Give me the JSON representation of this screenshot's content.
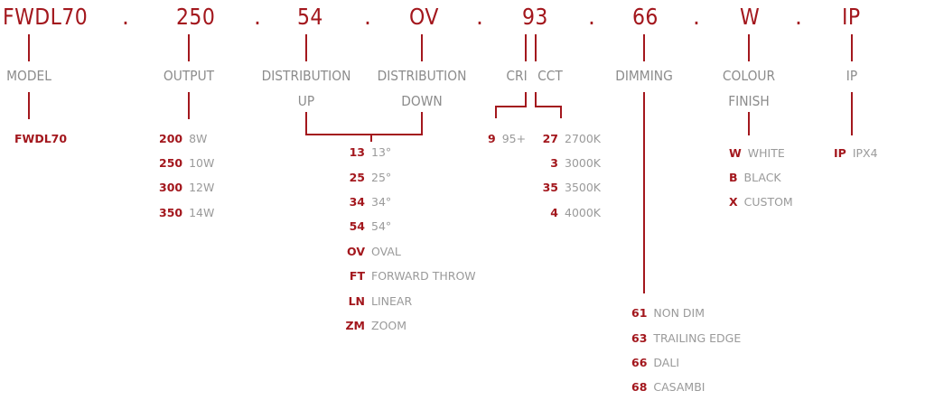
{
  "codes": {
    "model": "FWDL70",
    "output": "250",
    "dist_up": "54",
    "dist_down": "OV",
    "cri_cct": "93",
    "dimming": "66",
    "colour": "W",
    "ip": "IP",
    "separator": "."
  },
  "labels": {
    "model": "MODEL",
    "output": "OUTPUT",
    "distribution_up_1": "DISTRIBUTION",
    "distribution_up_2": "UP",
    "distribution_down_1": "DISTRIBUTION",
    "distribution_down_2": "DOWN",
    "cri": "CRI",
    "cct": "CCT",
    "dimming": "DIMMING",
    "colour_1": "COLOUR",
    "colour_2": "FINISH",
    "ip": "IP"
  },
  "model_options": [
    {
      "code": "FWDL70"
    }
  ],
  "output_options": [
    {
      "code": "200",
      "desc": "8W"
    },
    {
      "code": "250",
      "desc": "10W"
    },
    {
      "code": "300",
      "desc": "12W"
    },
    {
      "code": "350",
      "desc": "14W"
    }
  ],
  "distribution_options": [
    {
      "code": "13",
      "desc": "13°"
    },
    {
      "code": "25",
      "desc": "25°"
    },
    {
      "code": "34",
      "desc": "34°"
    },
    {
      "code": "54",
      "desc": "54°"
    },
    {
      "code": "OV",
      "desc": "OVAL"
    },
    {
      "code": "FT",
      "desc": "FORWARD THROW"
    },
    {
      "code": "LN",
      "desc": "LINEAR"
    },
    {
      "code": "ZM",
      "desc": "ZOOM"
    }
  ],
  "cri_options": [
    {
      "code": "9",
      "desc": "95+"
    }
  ],
  "cct_options": [
    {
      "code": "27",
      "desc": "2700K"
    },
    {
      "code": "3",
      "desc": "3000K"
    },
    {
      "code": "35",
      "desc": "3500K"
    },
    {
      "code": "4",
      "desc": "4000K"
    }
  ],
  "dimming_options": [
    {
      "code": "61",
      "desc": "NON DIM"
    },
    {
      "code": "63",
      "desc": "TRAILING EDGE"
    },
    {
      "code": "66",
      "desc": "DALI"
    },
    {
      "code": "68",
      "desc": "CASAMBI"
    }
  ],
  "colour_options": [
    {
      "code": "W",
      "desc": "WHITE"
    },
    {
      "code": "B",
      "desc": "BLACK"
    },
    {
      "code": "X",
      "desc": "CUSTOM"
    }
  ],
  "ip_options": [
    {
      "code": "IP",
      "desc": "IPX4"
    }
  ],
  "colors": {
    "accent": "#a3171d",
    "label": "#8c8c8c",
    "desc": "#9a9a9a"
  }
}
